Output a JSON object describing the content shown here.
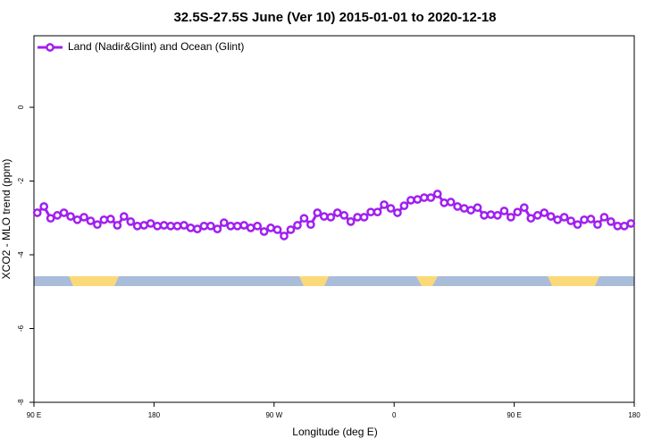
{
  "chart_data": {
    "type": "line",
    "title": "32.5S-27.5S June (Ver 10)   2015-01-01 to 2020-12-18",
    "xlabel": "Longitude (deg E)",
    "ylabel": "XCO2 - MLO trend (ppm)",
    "xlim": [
      90,
      540
    ],
    "xticks": [
      {
        "value": 90,
        "label": "90 E"
      },
      180,
      {
        "value": 270,
        "label": "90 W"
      },
      {
        "value": 360,
        "label": "0"
      },
      {
        "value": 450,
        "label": "90 E"
      },
      {
        "value": 540,
        "label": "180"
      }
    ],
    "ylim": [
      -8,
      1.94
    ],
    "yticks": [
      0,
      -2,
      -4,
      -6,
      -8
    ],
    "legend": "top-left",
    "x": [
      92.5,
      97.5,
      102.5,
      107.5,
      112.5,
      117.5,
      122.5,
      127.5,
      132.5,
      137.5,
      142.5,
      147.5,
      152.5,
      157.5,
      162.5,
      167.5,
      172.5,
      177.5,
      182.5,
      187.5,
      192.5,
      197.5,
      202.5,
      207.5,
      212.5,
      217.5,
      222.5,
      227.5,
      232.5,
      237.5,
      242.5,
      247.5,
      252.5,
      257.5,
      262.5,
      267.5,
      272.5,
      277.5,
      282.5,
      287.5,
      292.5,
      297.5,
      302.5,
      307.5,
      312.5,
      317.5,
      322.5,
      327.5,
      332.5,
      337.5,
      342.5,
      347.5,
      352.5,
      357.5,
      362.5,
      367.5,
      372.5,
      377.5,
      382.5,
      387.5,
      392.5,
      397.5,
      402.5,
      407.5,
      412.5,
      417.5,
      422.5,
      427.5,
      432.5,
      437.5,
      442.5,
      447.5,
      452.5,
      457.5,
      462.5,
      467.5,
      472.5,
      477.5,
      482.5,
      487.5,
      492.5,
      497.5,
      502.5,
      507.5,
      512.5,
      517.5,
      522.5,
      527.5,
      532.5,
      537.5
    ],
    "series": [
      {
        "name": "Land (Nadir&Glint) and Ocean (Glint)",
        "color": "#a020f0",
        "values": [
          -2.86,
          -2.69,
          -3.01,
          -2.93,
          -2.86,
          -2.96,
          -3.05,
          -2.98,
          -3.08,
          -3.18,
          -3.05,
          -3.03,
          -3.2,
          -2.96,
          -3.1,
          -3.22,
          -3.2,
          -3.15,
          -3.22,
          -3.2,
          -3.22,
          -3.22,
          -3.2,
          -3.27,
          -3.3,
          -3.22,
          -3.22,
          -3.3,
          -3.13,
          -3.22,
          -3.22,
          -3.2,
          -3.27,
          -3.22,
          -3.37,
          -3.27,
          -3.32,
          -3.49,
          -3.32,
          -3.2,
          -3.01,
          -3.18,
          -2.86,
          -2.96,
          -2.98,
          -2.86,
          -2.93,
          -3.1,
          -2.98,
          -2.98,
          -2.84,
          -2.84,
          -2.64,
          -2.74,
          -2.86,
          -2.67,
          -2.52,
          -2.5,
          -2.45,
          -2.45,
          -2.35,
          -2.59,
          -2.57,
          -2.69,
          -2.74,
          -2.79,
          -2.72,
          -2.93,
          -2.91,
          -2.93,
          -2.81,
          -2.98,
          -2.84,
          -2.72,
          -3.01,
          -2.93,
          -2.86,
          -2.96,
          -3.05,
          -2.98,
          -3.08,
          -3.18,
          -3.05,
          -3.03,
          -3.18,
          -2.98,
          -3.1,
          -3.22,
          -3.22,
          -3.15
        ]
      }
    ]
  }
}
